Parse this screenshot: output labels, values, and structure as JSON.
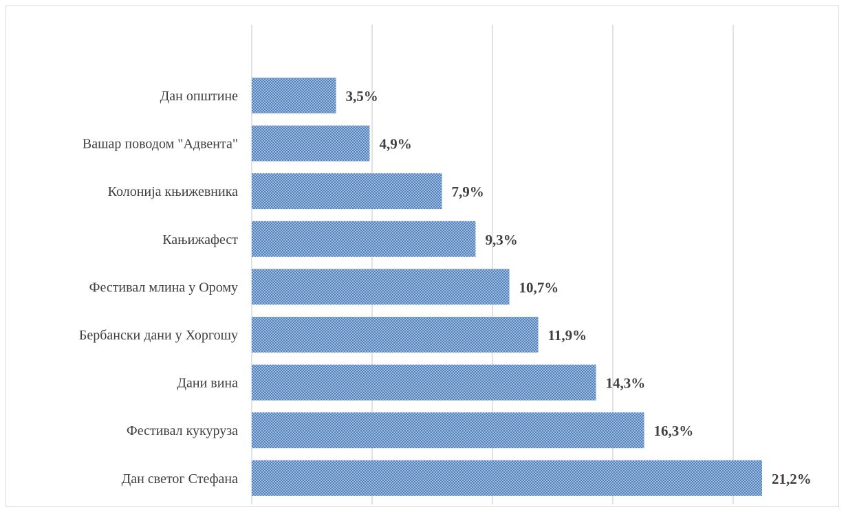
{
  "chart_data": {
    "type": "bar",
    "orientation": "horizontal",
    "categories": [
      "Дан општине",
      "Вашар поводом \"Адвента\"",
      "Колонија књижевника",
      "Кањижафест",
      "Фестивал млина у Орому",
      "Бербански дани у Хоргошу",
      "Дани вина",
      "Фестивал кукуруза",
      "Дан светог Стефана"
    ],
    "values": [
      3.5,
      4.9,
      7.9,
      9.3,
      10.7,
      11.9,
      14.3,
      16.3,
      21.2
    ],
    "value_labels": [
      "3,5%",
      "4,9%",
      "7,9%",
      "9,3%",
      "10,7%",
      "11,9%",
      "14,3%",
      "16,3%",
      "21,2%"
    ],
    "title": "",
    "xlabel": "",
    "ylabel": "",
    "xlim": [
      0,
      25
    ],
    "grid": true,
    "legend": "none",
    "colors": {
      "bar_fill": "#4f81bd",
      "bar_dots": "#dce6f2",
      "gridline": "#d9d9d9",
      "text": "#404040"
    }
  }
}
